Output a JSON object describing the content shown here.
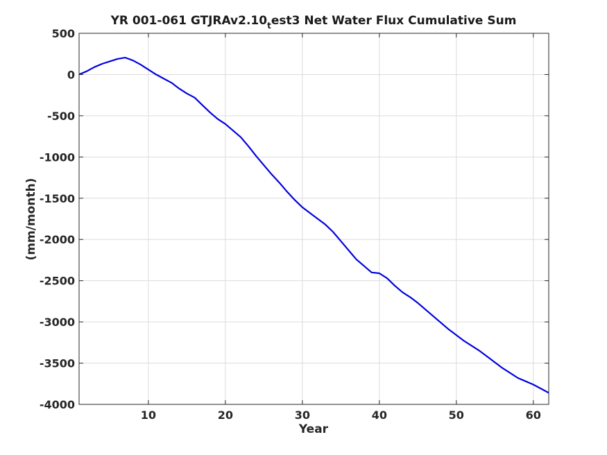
{
  "chart_data": {
    "type": "line",
    "title_main": "YR 001-061 GTJRAv2.10",
    "title_sub": "t",
    "title_rest": "est3 Net Water Flux Cumulative Sum",
    "xlabel": "Year",
    "ylabel": "(mm/month)",
    "xlim": [
      1,
      62
    ],
    "ylim": [
      -4000,
      500
    ],
    "grid": true,
    "x_ticks": [
      10,
      20,
      30,
      40,
      50,
      60
    ],
    "x_tick_labels": [
      "10",
      "20",
      "30",
      "40",
      "50",
      "60"
    ],
    "y_ticks": [
      500,
      0,
      -500,
      -1000,
      -1500,
      -2000,
      -2500,
      -3000,
      -3500,
      -4000
    ],
    "y_tick_labels": [
      "500",
      "0",
      "-500",
      "-1000",
      "-1500",
      "-2000",
      "-2500",
      "-3000",
      "-3500",
      "-4000"
    ],
    "series": [
      {
        "color": "#0000e0",
        "x": [
          1,
          2,
          3,
          4,
          5,
          6,
          7,
          8,
          9,
          10,
          11,
          12,
          13,
          14,
          15,
          16,
          17,
          18,
          19,
          20,
          21,
          22,
          23,
          24,
          25,
          26,
          27,
          28,
          29,
          30,
          31,
          32,
          33,
          34,
          35,
          36,
          37,
          38,
          39,
          40,
          41,
          42,
          43,
          44,
          45,
          46,
          47,
          48,
          49,
          50,
          51,
          52,
          53,
          54,
          55,
          56,
          57,
          58,
          59,
          60,
          61,
          62
        ],
        "y": [
          0,
          40,
          90,
          130,
          160,
          190,
          205,
          170,
          120,
          60,
          0,
          -50,
          -100,
          -170,
          -230,
          -280,
          -370,
          -460,
          -540,
          -600,
          -680,
          -760,
          -870,
          -990,
          -1100,
          -1210,
          -1310,
          -1420,
          -1520,
          -1610,
          -1680,
          -1750,
          -1820,
          -1910,
          -2020,
          -2130,
          -2240,
          -2320,
          -2400,
          -2410,
          -2470,
          -2560,
          -2640,
          -2700,
          -2770,
          -2850,
          -2930,
          -3010,
          -3090,
          -3160,
          -3230,
          -3290,
          -3350,
          -3420,
          -3490,
          -3560,
          -3620,
          -3680,
          -3720,
          -3760,
          -3810,
          -3860
        ]
      }
    ]
  }
}
